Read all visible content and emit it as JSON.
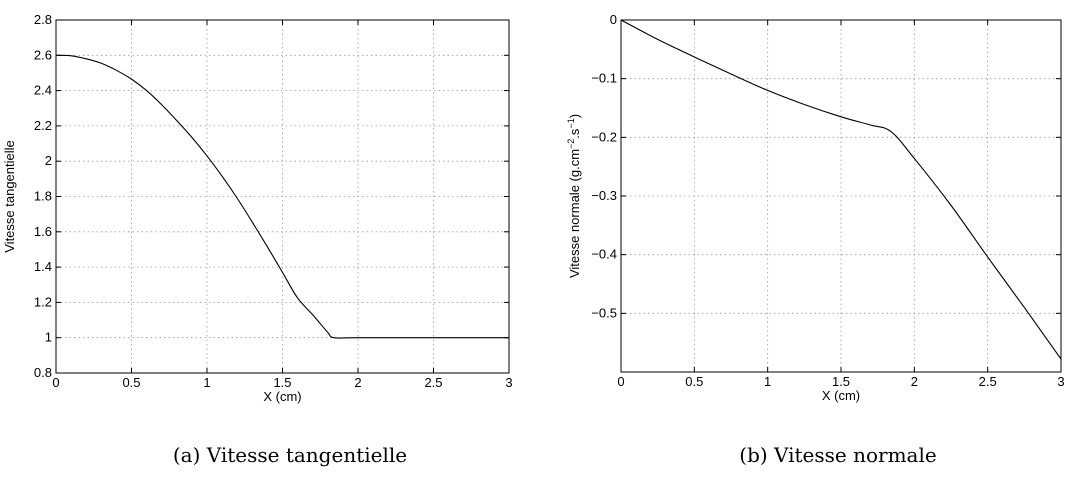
{
  "chart_data": [
    {
      "type": "line",
      "caption": "(a) Vitesse tangentielle",
      "xlabel": "X (cm)",
      "ylabel": "Vitesse tangentielle",
      "xlim": [
        0,
        3
      ],
      "ylim": [
        0.8,
        2.8
      ],
      "xticks": [
        "0",
        "0.5",
        "1",
        "1.5",
        "2",
        "2.5",
        "3"
      ],
      "yticks": [
        "0.8",
        "1",
        "1.2",
        "1.4",
        "1.6",
        "1.8",
        "2",
        "2.2",
        "2.4",
        "2.6",
        "2.8"
      ],
      "grid": true,
      "series": [
        {
          "x": [
            0,
            0.1,
            0.2,
            0.3,
            0.4,
            0.5,
            0.6,
            0.7,
            0.8,
            0.9,
            1.0,
            1.1,
            1.2,
            1.3,
            1.4,
            1.5,
            1.6,
            1.7,
            1.8,
            1.84,
            2.0,
            2.5,
            3.0
          ],
          "y": [
            2.6,
            2.597,
            2.58,
            2.555,
            2.515,
            2.465,
            2.4,
            2.32,
            2.23,
            2.135,
            2.03,
            1.915,
            1.79,
            1.655,
            1.515,
            1.37,
            1.225,
            1.13,
            1.03,
            1.0,
            1.0,
            1.0,
            1.0
          ]
        }
      ]
    },
    {
      "type": "line",
      "caption": "(b) Vitesse normale",
      "xlabel": "X (cm)",
      "ylabel_main": "Vitesse normale (g.cm",
      "ylabel_sup1": "−2",
      "ylabel_mid": ".s",
      "ylabel_sup2": "−1",
      "ylabel_end": ")",
      "xlim": [
        0,
        3
      ],
      "ylim": [
        -0.6,
        0
      ],
      "xticks": [
        "0",
        "0.5",
        "1",
        "1.5",
        "2",
        "2.5",
        "3"
      ],
      "yticks": [
        "−0.5",
        "−0.4",
        "−0.3",
        "−0.2",
        "−0.1",
        "0"
      ],
      "grid": true,
      "series": [
        {
          "x": [
            0,
            0.25,
            0.5,
            0.75,
            1.0,
            1.25,
            1.5,
            1.7,
            1.84,
            2.0,
            2.25,
            2.5,
            2.75,
            3.0
          ],
          "y": [
            0,
            -0.033,
            -0.063,
            -0.092,
            -0.12,
            -0.144,
            -0.165,
            -0.179,
            -0.19,
            -0.236,
            -0.316,
            -0.404,
            -0.49,
            -0.578
          ]
        }
      ]
    }
  ]
}
